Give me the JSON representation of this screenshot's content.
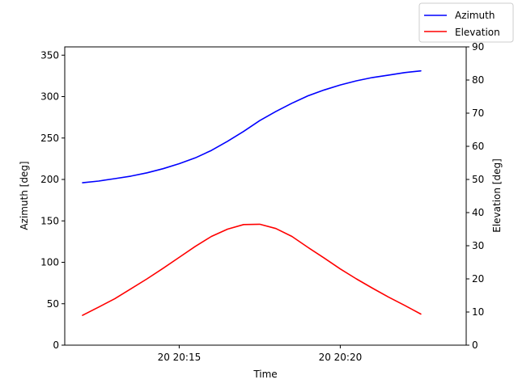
{
  "chart_data": {
    "type": "line",
    "xlabel": "Time",
    "x_ticks": [
      "20 20:15",
      "20 20:20"
    ],
    "x": [
      "20:12",
      "20:12.5",
      "20:13",
      "20:13.5",
      "20:14",
      "20:14.5",
      "20:15",
      "20:15.5",
      "20:16",
      "20:16.5",
      "20:17",
      "20:17.5",
      "20:18",
      "20:18.5",
      "20:19",
      "20:19.5",
      "20:20",
      "20:20.5",
      "20:21",
      "20:21.5",
      "20:22",
      "20:22.5"
    ],
    "left_axis": {
      "label": "Azimuth [deg]",
      "ylim": [
        0,
        360
      ],
      "ticks": [
        0,
        50,
        100,
        150,
        200,
        250,
        300,
        350
      ]
    },
    "right_axis": {
      "label": "Elevation [deg]",
      "ylim": [
        0,
        90
      ],
      "ticks": [
        0,
        10,
        20,
        30,
        40,
        50,
        60,
        70,
        80,
        90
      ]
    },
    "series": [
      {
        "name": "Azimuth",
        "color": "#0000ff",
        "axis": "left",
        "values": [
          196,
          198,
          201,
          204,
          208,
          213,
          219,
          226,
          235,
          246,
          258,
          271,
          282,
          292,
          301,
          308,
          314,
          319,
          323,
          326,
          329,
          331
        ]
      },
      {
        "name": "Elevation",
        "color": "#ff0000",
        "axis": "right",
        "values": [
          9,
          11.5,
          14,
          17,
          20,
          23.2,
          26.5,
          29.8,
          32.8,
          35,
          36.4,
          36.5,
          35.2,
          32.8,
          29.5,
          26.3,
          23,
          20,
          17.2,
          14.5,
          12,
          9.4
        ]
      }
    ],
    "legend": {
      "placement": "top-right"
    }
  }
}
